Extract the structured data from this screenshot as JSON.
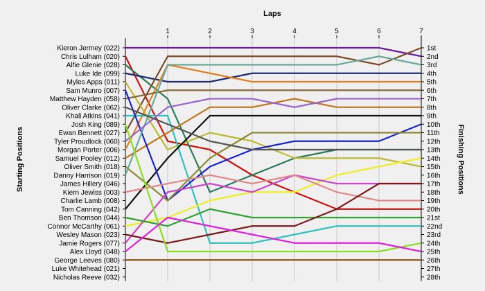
{
  "chart_data": {
    "type": "line",
    "title": "",
    "xlabel": "Laps",
    "ylabel_left": "Starting Positions",
    "ylabel_right": "Finishing Positions",
    "x": [
      1,
      2,
      3,
      4,
      5,
      6,
      7
    ],
    "start_labels": [
      "Kieron Jermey (022)",
      "Chris Lulham (020)",
      "Alfie Glenie (028)",
      "Luke Ide (099)",
      "Myles Apps (011)",
      "Sam Munro (007)",
      "Matthew Hayden (058)",
      "Oliver Clarke (062)",
      "Khali Atkins (041)",
      "Josh King (089)",
      "Ewan Bennett (027)",
      "Tyler Proudlock (060)",
      "Morgan Porter (006)",
      "Samuel Pooley (012)",
      "Oliver Smith (018)",
      "Danny Harrison (019)",
      "James Hillery (046)",
      "Kiern Jewiss (003)",
      "Charlie Lamb (008)",
      "Tom Canning (042)",
      "Ben Thomson (044)",
      "Connor McCarthy (061)",
      "Wesley Mason (023)",
      "Jamie Rogers (077)",
      "Alex Lloyd (048)",
      "George Leeves (080)",
      "Luke Whitehead (021)",
      "Nicholas Reeve (032)"
    ],
    "finish_labels": [
      "1st",
      "2nd",
      "3rd",
      "4th",
      "5th",
      "6th",
      "7th",
      "8th",
      "9th",
      "10th",
      "11th",
      "12th",
      "13th",
      "14th",
      "15th",
      "16th",
      "17th",
      "18th",
      "19th",
      "20th",
      "21st",
      "22nd",
      "23rd",
      "24th",
      "25th",
      "26th",
      "27th",
      "28th"
    ],
    "series": [
      {
        "color": "#6a1b9a",
        "positions": [
          1,
          1,
          1,
          1,
          1,
          1,
          1,
          2
        ]
      },
      {
        "color": "#cc1111",
        "positions": [
          2,
          12,
          13,
          16,
          18,
          20,
          20,
          20
        ]
      },
      {
        "color": "#2a7a5a",
        "positions": [
          3,
          7,
          18,
          16,
          14,
          13,
          13,
          13
        ]
      },
      {
        "color": "#1f2a70",
        "positions": [
          4,
          5,
          5,
          4,
          4,
          4,
          4,
          4
        ]
      },
      {
        "color": "#7a4a2a",
        "positions": [
          11,
          2,
          2,
          2,
          2,
          2,
          3,
          1
        ]
      },
      {
        "color": "#e08020",
        "positions": [
          13,
          3,
          4,
          5,
          5,
          5,
          5,
          5
        ]
      },
      {
        "color": "#bbbb33",
        "positions": [
          5,
          13,
          11,
          12,
          14,
          14,
          14,
          15
        ]
      },
      {
        "color": "#30c0c0",
        "positions": [
          9,
          9,
          24,
          24,
          23,
          22,
          22,
          22
        ]
      },
      {
        "color": "#c07820",
        "positions": [
          14,
          11,
          8,
          8,
          7,
          8,
          8,
          8
        ]
      },
      {
        "color": "#8a6a3a",
        "positions": [
          7,
          6,
          6,
          6,
          6,
          6,
          6,
          6
        ]
      },
      {
        "color": "#111111",
        "positions": [
          20,
          14,
          9,
          9,
          9,
          9,
          9,
          9
        ]
      },
      {
        "color": "#1a22cc",
        "positions": [
          6,
          19,
          15,
          13,
          12,
          12,
          12,
          10
        ]
      },
      {
        "color": "#8a8a30",
        "positions": [
          15,
          19,
          14,
          11,
          11,
          11,
          11,
          11
        ]
      },
      {
        "color": "#eeee22",
        "positions": [
          22,
          21,
          19,
          18,
          18,
          16,
          15,
          14
        ]
      },
      {
        "color": "#66aa99",
        "positions": [
          16,
          3,
          3,
          3,
          3,
          3,
          2,
          3
        ]
      },
      {
        "color": "#cc44cc",
        "positions": [
          24,
          18,
          17,
          18,
          16,
          17,
          17,
          17
        ]
      },
      {
        "color": "#e08888",
        "positions": [
          18,
          17,
          16,
          17,
          16,
          18,
          19,
          19
        ]
      },
      {
        "color": "#33a033",
        "positions": [
          21,
          22,
          20,
          21,
          21,
          21,
          21,
          21
        ]
      },
      {
        "color": "#7a1a1a",
        "positions": [
          23,
          24,
          23,
          22,
          22,
          20,
          17,
          17
        ]
      },
      {
        "color": "#9966cc",
        "positions": [
          12,
          8,
          7,
          7,
          8,
          7,
          7,
          7
        ]
      },
      {
        "color": "#88dd22",
        "positions": [
          10,
          25,
          25,
          25,
          25,
          25,
          25,
          24
        ]
      },
      {
        "color": "#dd22dd",
        "positions": [
          25,
          21,
          22,
          23,
          24,
          24,
          24,
          25
        ]
      },
      {
        "color": "#555555",
        "positions": [
          8,
          10,
          12,
          13,
          13,
          13,
          13,
          13
        ]
      },
      {
        "color": "#8a5a1a",
        "positions": [
          26,
          26,
          26,
          26,
          26,
          26,
          26,
          26
        ]
      }
    ]
  }
}
